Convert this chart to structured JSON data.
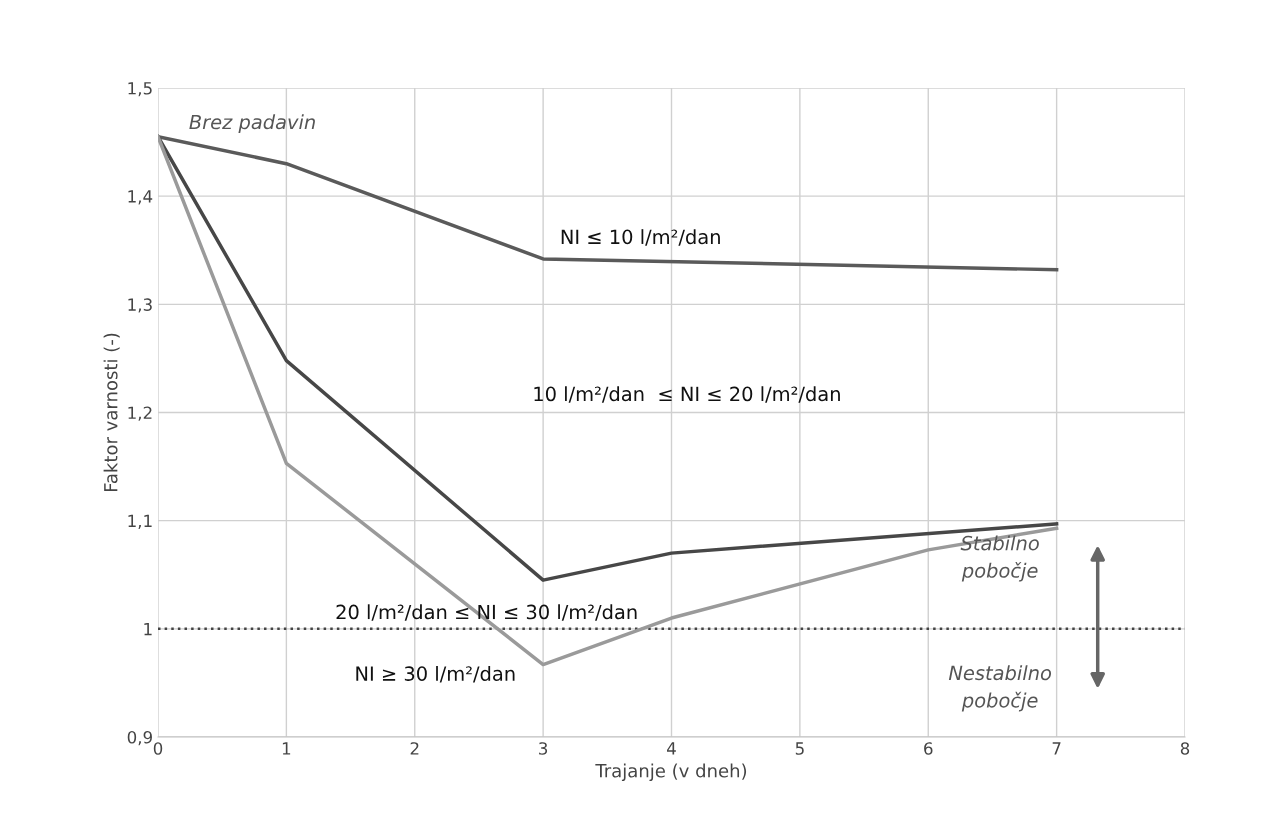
{
  "chart_data": {
    "type": "line",
    "xlabel": "Trajanje (v dneh)",
    "ylabel": "Faktor varnosti (-)",
    "series": [
      {
        "color": "#5a5a5a",
        "x": [
          0,
          1,
          3,
          7
        ],
        "values": [
          1.455,
          1.43,
          1.342,
          1.332
        ]
      },
      {
        "color": "#474747",
        "x": [
          0,
          1,
          3,
          4,
          7
        ],
        "values": [
          1.455,
          1.248,
          1.045,
          1.07,
          1.097
        ]
      },
      {
        "color": "#9a9a9a",
        "x": [
          0,
          1,
          3,
          4,
          6,
          7
        ],
        "values": [
          1.455,
          1.153,
          0.967,
          1.01,
          1.073,
          1.093
        ]
      }
    ],
    "xlim": [
      0,
      8
    ],
    "xticks": [
      0,
      1,
      2,
      3,
      4,
      5,
      6,
      7,
      8
    ],
    "ylim": [
      0.9,
      1.5
    ],
    "yticks": [
      {
        "value": 0.9,
        "label": "0,9"
      },
      {
        "value": 1.0,
        "label": "1"
      },
      {
        "value": 1.1,
        "label": "1,1"
      },
      {
        "value": 1.2,
        "label": "1,2"
      },
      {
        "value": 1.3,
        "label": "1,3"
      },
      {
        "value": 1.4,
        "label": "1,4"
      },
      {
        "value": 1.5,
        "label": "1,5"
      }
    ],
    "grid": true,
    "marker": "none",
    "line_style": "solid",
    "ref_lines": [
      {
        "axis": "y",
        "value": 1.0,
        "color": "#444444",
        "line_style": "dotted"
      }
    ],
    "annotations": [
      "Brez padavin",
      "NI ≤ 10 l/m²/dan",
      "10 l/m²/dan  ≤ NI ≤ 20 l/m²/dan",
      "20 l/m²/dan ≤ NI ≤ 30 l/m²/dan",
      "NI ≥ 30 l/m²/dan",
      "Stabilno\npobočje",
      "Nestabilno\npobočje"
    ]
  }
}
